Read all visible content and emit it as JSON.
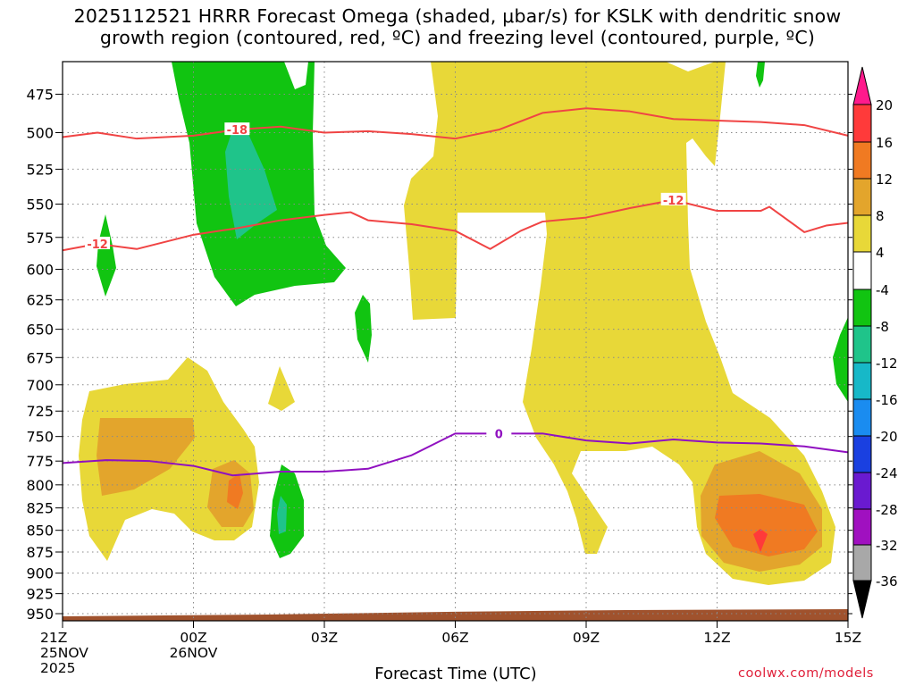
{
  "chart_data": {
    "type": "heatmap",
    "title_line1": "2025112521 HRRR Forecast Omega (shaded, μbar/s) for KSLK with dendritic snow",
    "title_line2": "growth region (contoured, red, ºC) and freezing level (contoured, purple, ºC)",
    "xlabel": "Forecast Time (UTC)",
    "credit": "coolwx.com/models",
    "x_ticks": [
      {
        "hour": 0,
        "label": "21Z",
        "date": "25NOV",
        "year": "2025"
      },
      {
        "hour": 3,
        "label": "00Z",
        "date": "26NOV"
      },
      {
        "hour": 6,
        "label": "03Z"
      },
      {
        "hour": 9,
        "label": "06Z"
      },
      {
        "hour": 12,
        "label": "09Z"
      },
      {
        "hour": 15,
        "label": "12Z"
      },
      {
        "hour": 18,
        "label": "15Z"
      }
    ],
    "x_range_hours": [
      0,
      18
    ],
    "y_ticks_mb": [
      475,
      500,
      525,
      550,
      575,
      600,
      625,
      650,
      675,
      700,
      725,
      750,
      775,
      800,
      825,
      850,
      875,
      900,
      925,
      950
    ],
    "y_axis": "pressure (mb), reversed",
    "colorbar": {
      "labels": [
        "20",
        "16",
        "12",
        "8",
        "4",
        "-4",
        "-8",
        "-12",
        "-16",
        "-20",
        "-24",
        "-28",
        "-32",
        "-36"
      ],
      "colors": [
        "#ff1a8c",
        "#ff3a3a",
        "#f07a22",
        "#e3a52c",
        "#e8d838",
        "#ffffff",
        "#11c411",
        "#1fc48a",
        "#17b8c8",
        "#1a8cf0",
        "#1a40e0",
        "#6a1ad0",
        "#a010c0",
        "#a8a8a8",
        "#000000"
      ]
    },
    "contours": [
      {
        "series": "-18 °C",
        "label": "-18",
        "color": "#f04444",
        "points": [
          [
            0,
            503
          ],
          [
            0.8,
            500
          ],
          [
            1.7,
            504
          ],
          [
            3,
            502
          ],
          [
            4,
            498
          ],
          [
            5,
            496
          ],
          [
            6,
            500
          ],
          [
            7,
            499
          ],
          [
            8,
            501
          ],
          [
            9,
            504
          ],
          [
            10,
            498
          ],
          [
            11,
            487
          ],
          [
            12,
            484
          ],
          [
            13,
            486
          ],
          [
            14,
            491
          ],
          [
            15,
            492
          ],
          [
            16,
            493
          ],
          [
            17,
            495
          ],
          [
            18,
            502
          ]
        ]
      },
      {
        "series": "-12 °C",
        "label": "-12",
        "color": "#f04444",
        "points": [
          [
            0,
            585
          ],
          [
            0.8,
            580
          ],
          [
            1.7,
            584
          ],
          [
            3,
            573
          ],
          [
            4,
            568
          ],
          [
            5,
            562
          ],
          [
            6,
            558
          ],
          [
            6.6,
            556
          ],
          [
            7,
            562
          ],
          [
            8,
            565
          ],
          [
            9,
            570
          ],
          [
            9.8,
            584
          ],
          [
            10.5,
            570
          ],
          [
            11,
            563
          ],
          [
            12,
            560
          ],
          [
            13,
            553
          ],
          [
            14,
            547
          ],
          [
            15,
            555
          ],
          [
            16,
            555
          ],
          [
            16.2,
            552
          ],
          [
            17,
            571
          ],
          [
            17.5,
            566
          ],
          [
            18,
            564
          ]
        ]
      },
      {
        "series": "0 °C",
        "label": "0",
        "color": "#9010c0",
        "points": [
          [
            0,
            777
          ],
          [
            1,
            774
          ],
          [
            2,
            775
          ],
          [
            3,
            780
          ],
          [
            3.9,
            790
          ],
          [
            5,
            786
          ],
          [
            6,
            786
          ],
          [
            7,
            783
          ],
          [
            8,
            769
          ],
          [
            9,
            747
          ],
          [
            10,
            747
          ],
          [
            11,
            747
          ],
          [
            12,
            754
          ],
          [
            13,
            757
          ],
          [
            14,
            753
          ],
          [
            15,
            756
          ],
          [
            16,
            757
          ],
          [
            17,
            760
          ],
          [
            18,
            766
          ]
        ]
      }
    ]
  }
}
